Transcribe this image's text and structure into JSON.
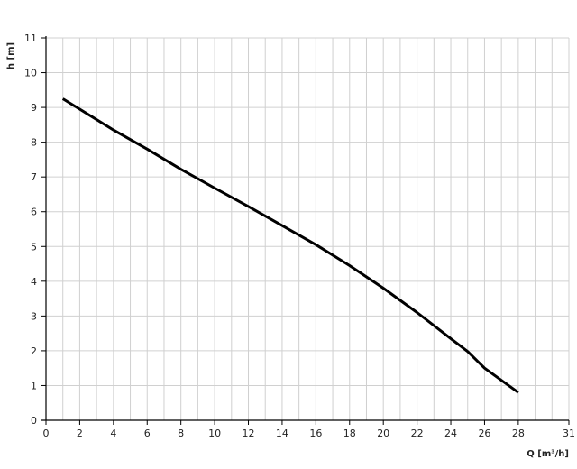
{
  "chart_data": {
    "type": "line",
    "title": "",
    "xlabel": "Q [m³/h]",
    "ylabel": "h [m]",
    "xlim": [
      0,
      31
    ],
    "ylim": [
      0,
      11
    ],
    "grid": true,
    "x_ticks": [
      0,
      2,
      4,
      6,
      8,
      10,
      12,
      14,
      16,
      18,
      20,
      22,
      24,
      26,
      28,
      31
    ],
    "y_ticks": [
      0,
      1,
      2,
      3,
      4,
      5,
      6,
      7,
      8,
      9,
      10,
      11
    ],
    "line_color": "#000000",
    "grid_color": "#d0d0d0",
    "series": [
      {
        "x": [
          1,
          2,
          4,
          6,
          8,
          10,
          12,
          14,
          16,
          18,
          20,
          22,
          24,
          25,
          26,
          28
        ],
        "y": [
          9.25,
          8.95,
          8.35,
          7.8,
          7.22,
          6.68,
          6.15,
          5.6,
          5.05,
          4.45,
          3.8,
          3.1,
          2.35,
          1.98,
          1.5,
          0.8
        ]
      }
    ]
  }
}
